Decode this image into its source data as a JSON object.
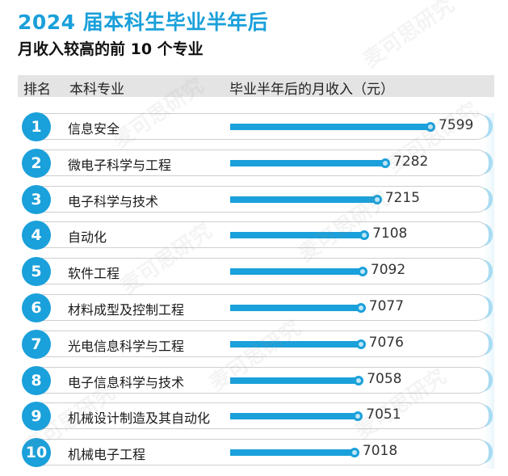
{
  "title": "2024 届本科生毕业半年后",
  "subtitle": "月收入较高的前 10 个专业",
  "header": {
    "rank": "排名",
    "major": "本科专业",
    "salary": "毕业半年后的月收入（元）"
  },
  "watermark": "麦可思研究",
  "colors": {
    "accent": "#1aa0da",
    "header_bg": "#e4e4e4"
  },
  "chart_data": {
    "type": "bar",
    "orientation": "horizontal",
    "title": "2024 届本科生毕业半年后",
    "subtitle": "月收入较高的前 10 个专业",
    "xlabel": "毕业半年后的月收入（元）",
    "ylabel": "本科专业",
    "ranks": [
      "1",
      "2",
      "3",
      "4",
      "5",
      "6",
      "7",
      "8",
      "9",
      "10"
    ],
    "categories": [
      "信息安全",
      "微电子科学与工程",
      "电子科学与技术",
      "自动化",
      "软件工程",
      "材料成型及控制工程",
      "光电信息科学与工程",
      "电子信息科学与技术",
      "机械设计制造及其自动化",
      "机械电子工程"
    ],
    "values": [
      7599,
      7282,
      7215,
      7108,
      7092,
      7077,
      7076,
      7058,
      7051,
      7018
    ]
  }
}
